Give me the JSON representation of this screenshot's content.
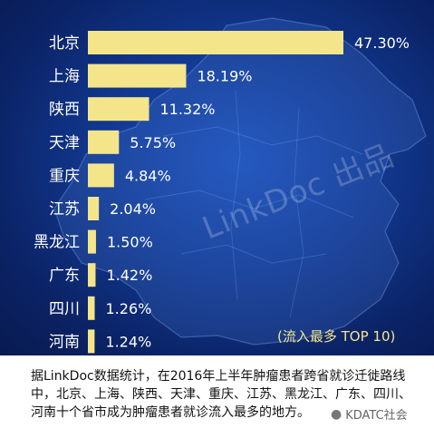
{
  "chart_data": {
    "type": "bar",
    "orientation": "horizontal",
    "categories": [
      "北京",
      "上海",
      "陕西",
      "天津",
      "重庆",
      "江苏",
      "黑龙江",
      "广东",
      "四川",
      "河南"
    ],
    "values": [
      47.3,
      18.19,
      11.32,
      5.75,
      4.84,
      2.04,
      1.5,
      1.42,
      1.26,
      1.24
    ],
    "value_labels": [
      "47.30%",
      "18.19%",
      "11.32%",
      "5.75%",
      "4.84%",
      "2.04%",
      "1.50%",
      "1.42%",
      "1.26%",
      "1.24%"
    ],
    "bar_color": "#f4e58b",
    "background": "#0f2f7e",
    "grid": false,
    "legend": false
  },
  "watermark": "LinkDoc 出品",
  "badge": "(流入最多 TOP 10)",
  "caption": "据LinkDoc数据统计，在2016年上半年肿瘤患者跨省就诊迁徙路线中，北京、上海、陕西、天津、重庆、江苏、黑龙江、广东、四川、河南十个省市成为肿瘤患者就诊流入最多的地方。",
  "signature": "KDATC社会"
}
